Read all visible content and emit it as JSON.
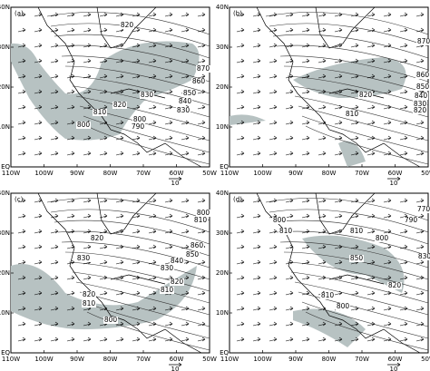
{
  "lat_labels": [
    "40N",
    "30N",
    "20N",
    "10N",
    "EQ"
  ],
  "lon_labels": [
    "110W",
    "100W",
    "90W",
    "80W",
    "70W",
    "60W",
    "50W"
  ],
  "panels": [
    {
      "label": "(a)",
      "vector_ref": "10",
      "contour_labels": [
        "820",
        "870",
        "860",
        "850",
        "840",
        "830",
        "830",
        "820",
        "810",
        "800",
        "790",
        "800"
      ]
    },
    {
      "label": "(b)",
      "vector_ref": "10",
      "contour_labels": [
        "870",
        "860",
        "850",
        "840",
        "830",
        "820",
        "820",
        "810"
      ]
    },
    {
      "label": "(c)",
      "vector_ref": "10",
      "contour_labels": [
        "800",
        "810",
        "820",
        "860",
        "850",
        "840",
        "830",
        "830",
        "820",
        "810",
        "820",
        "810",
        "800"
      ]
    },
    {
      "label": "(d)",
      "vector_ref": "10",
      "contour_labels": [
        "770",
        "790",
        "800",
        "810",
        "800",
        "810",
        "850",
        "830",
        "820",
        "810",
        "800"
      ]
    }
  ]
}
